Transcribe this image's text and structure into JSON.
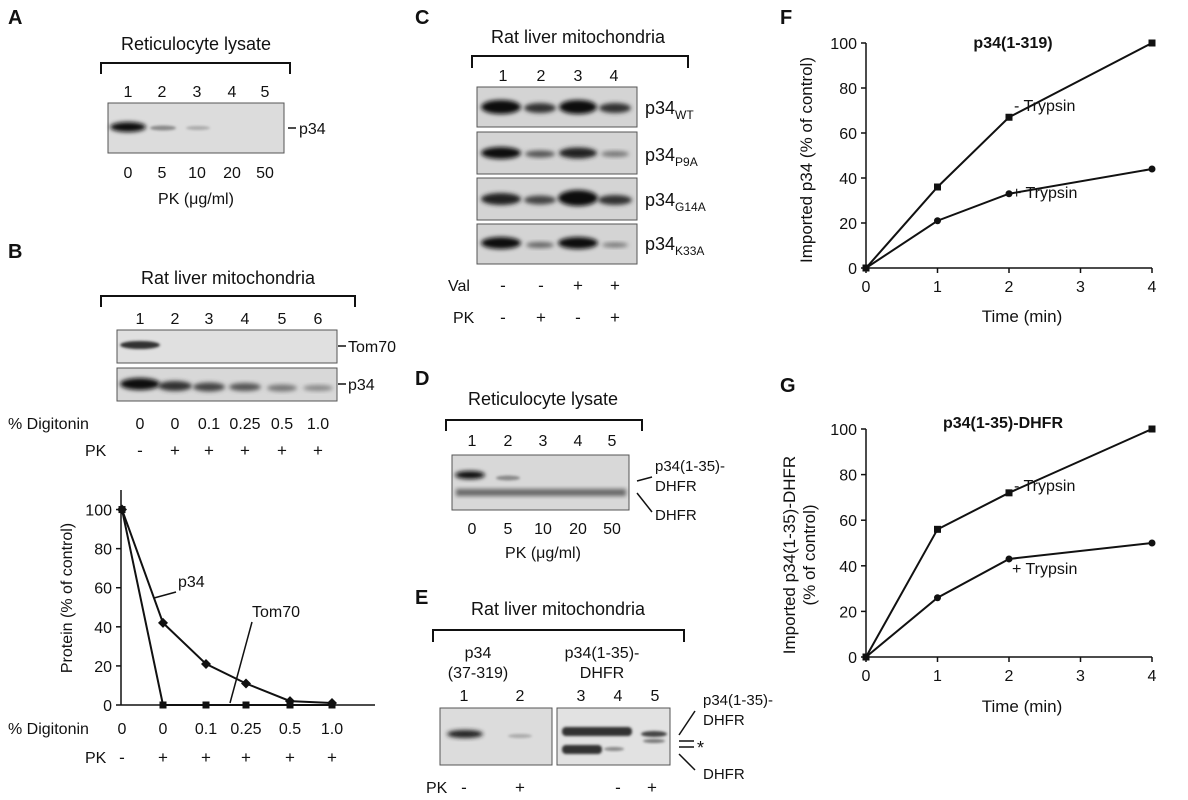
{
  "panels": {
    "A": {
      "letter": "A",
      "title": "Reticulocyte lysate",
      "lanes": [
        "1",
        "2",
        "3",
        "4",
        "5"
      ],
      "band_label": "p34",
      "pk_values": [
        "0",
        "5",
        "10",
        "20",
        "50"
      ],
      "pk_label": "PK (μg/ml)"
    },
    "B": {
      "letter": "B",
      "title": "Rat liver mitochondria",
      "lanes": [
        "1",
        "2",
        "3",
        "4",
        "5",
        "6"
      ],
      "blot_labels": [
        "Tom70",
        "p34"
      ],
      "digitonin_label": "% Digitonin",
      "digitonin_values": [
        "0",
        "0",
        "0.1",
        "0.25",
        "0.5",
        "1.0"
      ],
      "pk_label": "PK",
      "pk_values": [
        "-",
        "+",
        "+",
        "+",
        "+",
        "+"
      ]
    },
    "C": {
      "letter": "C",
      "title": "Rat liver mitochondria",
      "lanes": [
        "1",
        "2",
        "3",
        "4"
      ],
      "rows": [
        {
          "base": "p34",
          "sub": "WT"
        },
        {
          "base": "p34",
          "sub": "P9A"
        },
        {
          "base": "p34",
          "sub": "G14A"
        },
        {
          "base": "p34",
          "sub": "K33A"
        }
      ],
      "val_label": "Val",
      "val_values": [
        "-",
        "-",
        "+",
        "+"
      ],
      "pk_label": "PK",
      "pk_values": [
        "-",
        "+",
        "-",
        "+"
      ]
    },
    "D": {
      "letter": "D",
      "title": "Reticulocyte lysate",
      "lanes": [
        "1",
        "2",
        "3",
        "4",
        "5"
      ],
      "label_top_1": "p34(1-35)-",
      "label_top_2": "DHFR",
      "label_bottom": "DHFR",
      "pk_values": [
        "0",
        "5",
        "10",
        "20",
        "50"
      ],
      "pk_label": "PK (μg/ml)"
    },
    "E": {
      "letter": "E",
      "title": "Rat liver mitochondria",
      "group1_line1": "p34",
      "group1_line2": "(37-319)",
      "group2_line1": "p34(1-35)-",
      "group2_line2": "DHFR",
      "lanes": [
        "1",
        "2",
        "3",
        "4",
        "5"
      ],
      "label_top_1": "p34(1-35)-",
      "label_top_2": "DHFR",
      "label_star": "*",
      "label_bottom": "DHFR",
      "pk_label": "PK",
      "pk_values": [
        "-",
        "+",
        "",
        "-",
        "+"
      ]
    },
    "F": {
      "letter": "F"
    },
    "G": {
      "letter": "G"
    }
  },
  "chart_data": [
    {
      "panel": "B",
      "type": "line",
      "ylabel": "Protein  (% of control)",
      "xlabel_rows": [
        {
          "label": "% Digitonin",
          "values": [
            "0",
            "0",
            "0.1",
            "0.25",
            "0.5",
            "1.0"
          ]
        },
        {
          "label": "PK",
          "values": [
            "-",
            "+",
            "+",
            "+",
            "+",
            "+"
          ]
        }
      ],
      "yticks": [
        0,
        20,
        40,
        60,
        80,
        100
      ],
      "ylim": [
        0,
        110
      ],
      "series": [
        {
          "name": "p34",
          "marker": "diamond",
          "values": [
            100,
            42,
            21,
            11,
            2,
            1
          ]
        },
        {
          "name": "Tom70",
          "marker": "square",
          "values": [
            100,
            0,
            0,
            0,
            0,
            0
          ]
        }
      ],
      "grid": false
    },
    {
      "panel": "F",
      "type": "line",
      "title": "p34(1-319)",
      "xlabel": "Time (min)",
      "ylabel": "Imported p34 (% of control)",
      "xticks": [
        0,
        1,
        2,
        3,
        4
      ],
      "yticks": [
        0,
        20,
        40,
        60,
        80,
        100
      ],
      "xlim": [
        0,
        4
      ],
      "ylim": [
        0,
        100
      ],
      "series": [
        {
          "name": "- Trypsin",
          "marker": "square",
          "x": [
            0,
            1,
            2,
            4
          ],
          "y": [
            0,
            36,
            67,
            100
          ]
        },
        {
          "name": "+ Trypsin",
          "marker": "circle",
          "x": [
            0,
            1,
            2,
            4
          ],
          "y": [
            0,
            21,
            33,
            44
          ]
        }
      ],
      "grid": false
    },
    {
      "panel": "G",
      "type": "line",
      "title": "p34(1-35)-DHFR",
      "xlabel": "Time (min)",
      "ylabel_1": "Imported p34(1-35)-DHFR",
      "ylabel_2": "(% of control)",
      "xticks": [
        0,
        1,
        2,
        3,
        4
      ],
      "yticks": [
        0,
        20,
        40,
        60,
        80,
        100
      ],
      "xlim": [
        0,
        4
      ],
      "ylim": [
        0,
        100
      ],
      "series": [
        {
          "name": "- Trypsin",
          "marker": "square",
          "x": [
            0,
            1,
            2,
            4
          ],
          "y": [
            0,
            56,
            72,
            100
          ]
        },
        {
          "name": "+ Trypsin",
          "marker": "circle",
          "x": [
            0,
            1,
            2,
            4
          ],
          "y": [
            0,
            26,
            43,
            50
          ]
        }
      ],
      "grid": false
    }
  ]
}
